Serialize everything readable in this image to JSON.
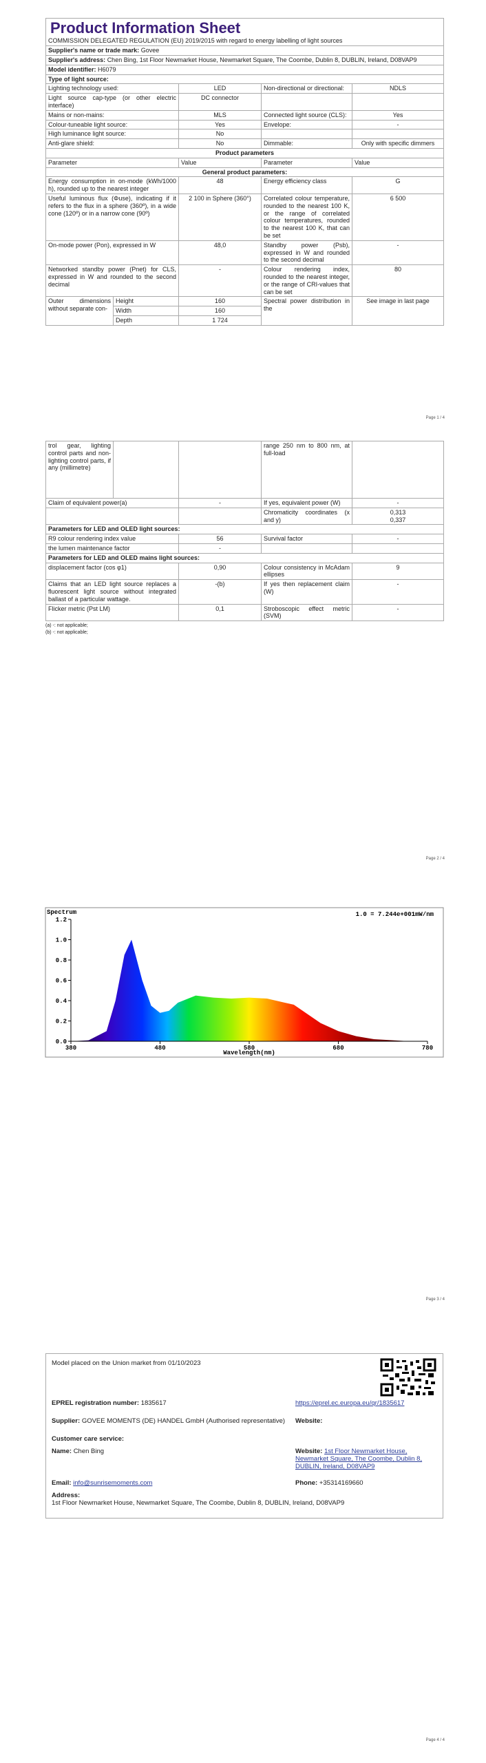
{
  "pages": [
    "Page 1 / 4",
    "Page 2 / 4",
    "Page 3 / 4",
    "Page 4 / 4"
  ],
  "sheet": {
    "title": "Product Information Sheet",
    "subtitle": "COMMISSION DELEGATED REGULATION (EU) 2019/2015 with regard to energy labelling of light sources",
    "supplier_name": {
      "label": "Supplier's name or trade mark:",
      "value": "Govee"
    },
    "supplier_address": {
      "label": "Supplier's address:",
      "value": "Chen Bing, 1st Floor Newmarket House, Newmarket Square, The Coombe, Dublin 8, DUBLIN, Ireland, D08VAP9"
    },
    "model": {
      "label": "Model identifier:",
      "value": "H6079"
    },
    "light_source_type": "Type of light source:",
    "type_rows": [
      [
        "Lighting technology used:",
        "LED",
        "Non-directional or directional:",
        "NDLS"
      ],
      [
        "Light source cap-type (or other electric interface)",
        "DC connector",
        null,
        null
      ],
      [
        "Mains or non-mains:",
        "MLS",
        "Connected light source (CLS):",
        "Yes"
      ],
      [
        "Colour-tuneable light source:",
        "Yes",
        "Envelope:",
        "-"
      ],
      [
        "High luminance light source:",
        "No",
        null,
        null
      ],
      [
        "Anti-glare shield:",
        "No",
        "Dimmable:",
        "Only with specific dimmers"
      ]
    ],
    "product_parameters": "Product parameters",
    "header": [
      "Parameter",
      "Value",
      "Parameter",
      "Value"
    ],
    "general_title": "General product parameters:",
    "general_rows": [
      [
        "Energy consumption in on-mode (kWh/1000 h), rounded up to the nearest integer",
        "48",
        "Energy efficiency class",
        "G"
      ],
      [
        "Useful luminous flux (Φuse), indicating if it refers to the flux in a sphere (360º), in a wide cone (120º) or in a narrow cone (90º)",
        "2 100 in Sphere (360°)",
        "Correlated colour temperature, rounded to the nearest 100 K, or the range of correlated colour temperatures, rounded to the nearest 100 K, that can be set",
        "6 500"
      ],
      [
        "On-mode power (Pon), expressed in W",
        "48,0",
        "Standby power (Psb), expressed in W and rounded to the second decimal",
        "-"
      ],
      [
        "Networked standby power (Pnet) for CLS, expressed in W and rounded to the second decimal",
        "-",
        "Colour rendering index, rounded to the nearest integer, or the range of CRI-values that can be set",
        "80"
      ]
    ],
    "dimensions": {
      "label_start": "Outer dimensions without separate con-",
      "items": [
        {
          "label": "Height",
          "value": "160"
        },
        {
          "label": "Width",
          "value": "160"
        },
        {
          "label": "Depth",
          "value": "1 724"
        }
      ],
      "right_start": "Spectral power distribution in the",
      "right_value": "See image in last page",
      "label_end": "trol gear, lighting control parts and non-lighting control parts, if any (millimetre)",
      "right_end": "range 250 nm to 800 nm, at full-load"
    },
    "more_rows": [
      [
        "Claim of equivalent power(a)",
        "-",
        "If yes, equivalent power (W)",
        "-"
      ],
      [
        null,
        null,
        "Chromaticity coordinates (x and y)",
        "0,313\n0,337"
      ]
    ],
    "led_title": "Parameters for LED and OLED light sources:",
    "led_rows": [
      [
        "R9 colour rendering index value",
        "56",
        "Survival factor",
        "-"
      ],
      [
        "the lumen maintenance factor",
        "-",
        null,
        null
      ]
    ],
    "mains_title": "Parameters for LED and OLED mains light sources:",
    "mains_rows": [
      [
        "displacement factor (cos φ1)",
        "0,90",
        "Colour consistency in McAdam ellipses",
        "9"
      ],
      [
        "Claims that an LED light source replaces a fluorescent light source without integrated ballast of a particular wattage.",
        "-(b)",
        "If yes then replacement claim (W)",
        "-"
      ],
      [
        "Flicker metric (Pst LM)",
        "0,1",
        "Stroboscopic effect metric (SVM)",
        "-"
      ]
    ],
    "footnotes": [
      "(a) -: not applicable;",
      "(b) -: not applicable;"
    ]
  },
  "spectrum": {
    "title": "Spectrum",
    "note": "1.0 = 7.244e+001mW/nm",
    "xlabel": "Wavelength(nm)",
    "x": [
      380,
      400,
      420,
      430,
      440,
      448,
      460,
      470,
      480,
      490,
      500,
      520,
      540,
      560,
      580,
      600,
      620,
      630,
      640,
      660,
      680,
      700,
      720,
      740,
      760,
      780
    ],
    "values": [
      0,
      0.01,
      0.1,
      0.4,
      0.85,
      1.0,
      0.6,
      0.35,
      0.28,
      0.3,
      0.38,
      0.45,
      0.43,
      0.42,
      0.43,
      0.42,
      0.38,
      0.36,
      0.3,
      0.18,
      0.1,
      0.05,
      0.02,
      0.01,
      0,
      0
    ],
    "xlim": [
      380,
      780
    ],
    "ylim": [
      0,
      1.2
    ],
    "xticks": [
      380,
      480,
      580,
      680,
      780
    ],
    "yticks": [
      {
        "value": 0,
        "label": "0.0"
      },
      0.2,
      0.4,
      0.6,
      0.8,
      {
        "value": 1,
        "label": "1.0"
      },
      1.2
    ]
  },
  "contact": {
    "market": "Model placed on the Union market from 01/10/2023",
    "eprel": {
      "label": "EPREL registration number:",
      "value": "1835617"
    },
    "eprel_link": "https://eprel.ec.europa.eu/qr/1835617",
    "supplier": {
      "label": "Supplier:",
      "value": "GOVEE MOMENTS (DE) HANDEL GmbH (Authorised representative)"
    },
    "website_label": "Website:",
    "care": "Customer care service:",
    "name": {
      "label": "Name:",
      "value": "Chen Bing"
    },
    "website": {
      "label": "Website:",
      "value": "1st Floor Newmarket House, Newmarket Square, The Coombe, Dublin 8, DUBLIN, Ireland, D08VAP9"
    },
    "email": {
      "label": "Email:",
      "value": "info@sunrisemoments.com"
    },
    "phone": {
      "label": "Phone:",
      "value": "+35314169660"
    },
    "address": {
      "label": "Address:",
      "value": "1st Floor Newmarket House, Newmarket Square, The Coombe, Dublin 8, DUBLIN, Ireland, D08VAP9"
    }
  }
}
